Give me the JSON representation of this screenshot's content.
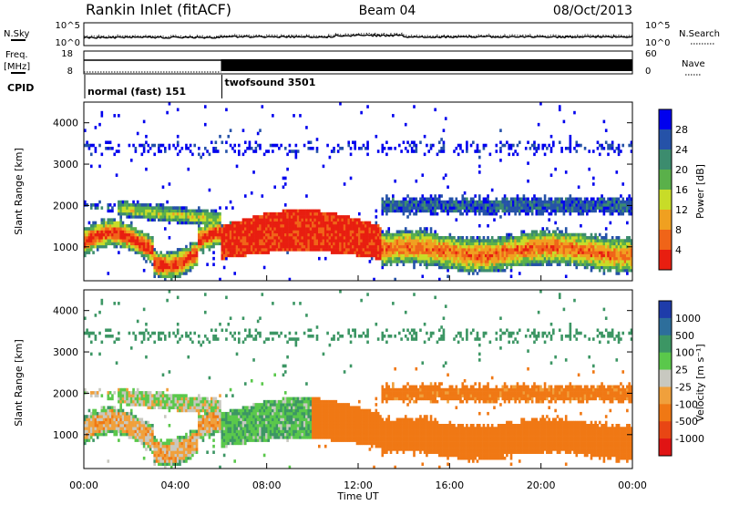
{
  "header": {
    "station": "Rankin Inlet (fitACF)",
    "beam": "Beam 04",
    "date": "08/Oct/2013"
  },
  "control_panels": {
    "nsky_label": "N.Sky",
    "nsky_ticks": [
      "10^5",
      "10^0"
    ],
    "nsearch_label": "N.Search",
    "nsearch_ticks": [
      "10^5",
      "10^0"
    ],
    "freq_label": "Freq.",
    "freq_unit": "[MHz]",
    "freq_ticks": [
      "18",
      "8"
    ],
    "nave_label": "Nave",
    "nave_ticks": [
      "60",
      "0"
    ],
    "cpid_label": "CPID",
    "cpid_modes": [
      {
        "name": "normal (fast) 151",
        "start_ut": 0.0
      },
      {
        "name": "twofsound 3501",
        "start_ut": 6.0
      }
    ]
  },
  "chart_data": [
    {
      "type": "heatmap",
      "name": "power",
      "ylabel": "Slant Range [km]",
      "xlabel": "",
      "x_range_ut_hours": [
        0,
        24
      ],
      "ylim": [
        180,
        4500
      ],
      "y_ticks": [
        1000,
        2000,
        3000,
        4000
      ],
      "colorbar_label": "Power [dB]",
      "colorbar_ticks": [
        "28",
        "24",
        "20",
        "16",
        "12",
        "8",
        "4"
      ],
      "colors": [
        "#0000ee",
        "#2552a8",
        "#3c8c6e",
        "#5ab04a",
        "#c8dc28",
        "#f0a020",
        "#f06418",
        "#e81e10"
      ],
      "bins_db": [
        0,
        4,
        8,
        12,
        16,
        20,
        24,
        28,
        32
      ]
    },
    {
      "type": "heatmap",
      "name": "velocity",
      "ylabel": "Slant Range [km]",
      "xlabel": "Time UT",
      "x_range_ut_hours": [
        0,
        24
      ],
      "x_ticks": [
        "00:00",
        "04:00",
        "08:00",
        "12:00",
        "16:00",
        "20:00",
        "00:00"
      ],
      "ylim": [
        180,
        4500
      ],
      "y_ticks": [
        1000,
        2000,
        3000,
        4000
      ],
      "colorbar_label": "Velocity [m s⁻¹]",
      "colorbar_ticks": [
        "1000",
        "500",
        "100",
        "25",
        "-25",
        "-100",
        "-500",
        "-1000"
      ],
      "colors": [
        "#1e3caa",
        "#2d6e9b",
        "#3c9664",
        "#5ac84b",
        "#c8c8c0",
        "#f0a03c",
        "#f07814",
        "#e84614",
        "#e01414"
      ]
    }
  ]
}
